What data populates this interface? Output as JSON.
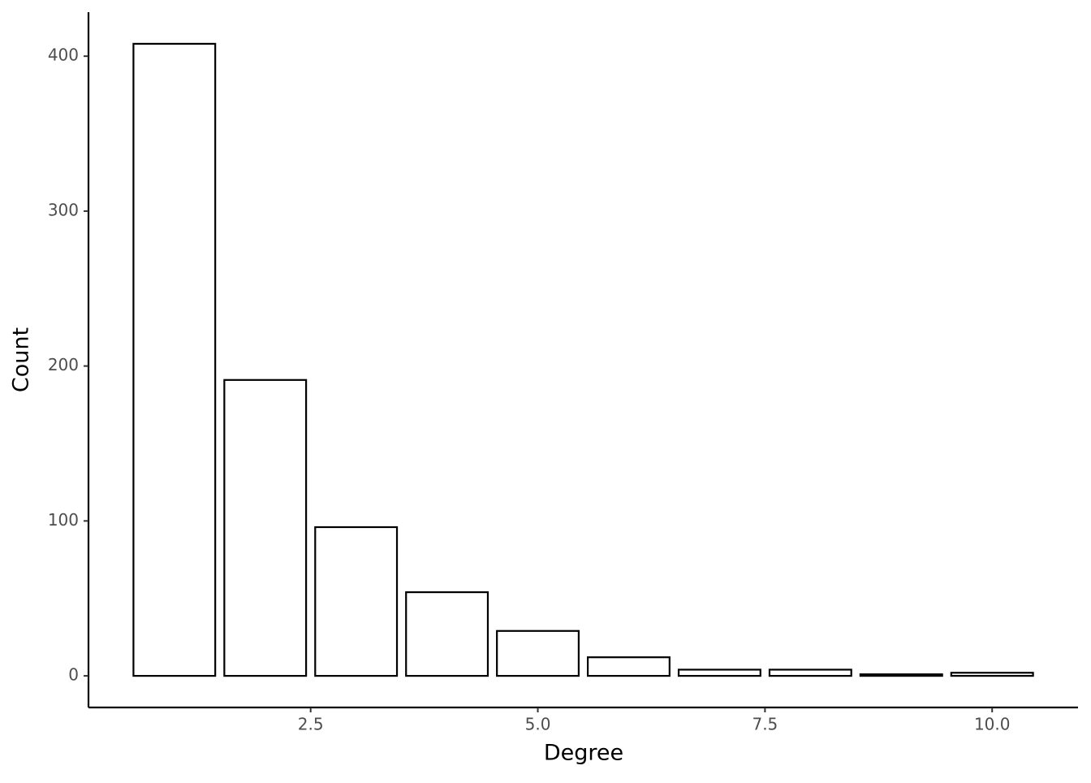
{
  "chart_data": {
    "type": "bar",
    "x": [
      1,
      2,
      3,
      4,
      5,
      6,
      7,
      8,
      9,
      10
    ],
    "values": [
      408,
      191,
      96,
      54,
      29,
      12,
      4,
      4,
      1,
      2
    ],
    "color": "#ffffff",
    "edgecolor": "#000000",
    "xlabel": "Degree",
    "ylabel": "Count",
    "xlim": [
      0.055,
      10.945
    ],
    "ylim": [
      -20.4,
      428.4
    ],
    "xticks": [
      2.5,
      {
        "value": 5,
        "label": "5.0"
      },
      7.5,
      {
        "value": 10,
        "label": "10.0"
      }
    ],
    "yticks": [
      0,
      100,
      200,
      300,
      400
    ],
    "grid": false
  }
}
